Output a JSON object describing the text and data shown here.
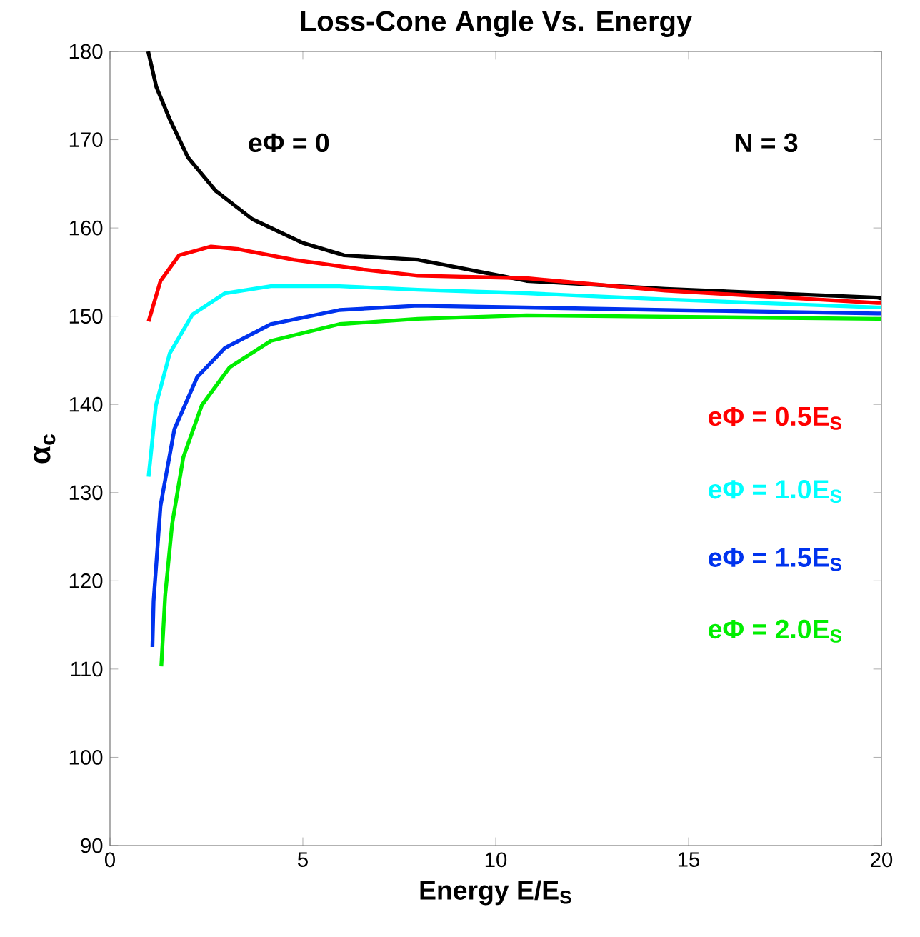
{
  "chart_data": {
    "type": "line",
    "title": "Loss-Cone Angle Vs. Energy",
    "xlabel": "Energy E/E$_{S}$",
    "ylabel": "α$_{c}$",
    "xlim": [
      0,
      20
    ],
    "ylim": [
      90,
      180
    ],
    "xticks": [
      0,
      5,
      10,
      15,
      20
    ],
    "yticks": [
      90,
      100,
      110,
      120,
      130,
      140,
      150,
      160,
      170,
      180
    ],
    "grid": false,
    "legend": false,
    "marker": "none",
    "line_style": "solid",
    "annotations": [
      "N = 3"
    ],
    "series": [
      {
        "name": "eΦ = 0",
        "color": "#000000",
        "x": [
          0.99,
          1.2,
          1.55,
          2.02,
          2.74,
          3.69,
          5.0,
          6.07,
          7.98,
          10.8,
          14.4,
          19.9,
          20
        ],
        "values": [
          180,
          176,
          172.3,
          168,
          164.2,
          161,
          158.3,
          156.9,
          156.4,
          154,
          153.1,
          152.1,
          152.0
        ]
      },
      {
        "name": "eΦ = 0.5E$_{S}$",
        "color": "#ff0000",
        "x": [
          1.0,
          1.31,
          1.79,
          2.62,
          3.33,
          4.76,
          6.55,
          7.98,
          10.8,
          14.4,
          19.9,
          20
        ],
        "values": [
          149.4,
          154,
          156.9,
          157.9,
          157.6,
          156.4,
          155.3,
          154.6,
          154.3,
          152.9,
          151.5,
          151.5
        ]
      },
      {
        "name": "eΦ = 1.0E$_{S}$",
        "color": "#00ffff",
        "x": [
          1.0,
          1.19,
          1.55,
          2.14,
          2.98,
          4.17,
          5.95,
          7.98,
          10.8,
          14.4,
          19.9,
          20
        ],
        "values": [
          131.8,
          139.9,
          145.8,
          150.2,
          152.6,
          153.4,
          153.4,
          153.0,
          152.6,
          151.9,
          151.0,
          151.0
        ]
      },
      {
        "name": "eΦ = 1.5E$_{S}$",
        "color": "#0033ee",
        "x": [
          1.1,
          1.13,
          1.31,
          1.67,
          2.26,
          2.98,
          4.17,
          5.95,
          7.98,
          14.4,
          19.9,
          20
        ],
        "values": [
          112.5,
          117.7,
          128.5,
          137.2,
          143.1,
          146.4,
          149.1,
          150.7,
          151.2,
          150.7,
          150.3,
          150.3
        ]
      },
      {
        "name": "eΦ = 2.0E$_{S}$",
        "color": "#00ee00",
        "x": [
          1.33,
          1.43,
          1.61,
          1.9,
          2.38,
          3.1,
          4.17,
          5.95,
          7.98,
          10.8,
          19.9,
          20
        ],
        "values": [
          110.3,
          118.3,
          126.4,
          134,
          139.9,
          144.2,
          147.2,
          149.1,
          149.7,
          150.1,
          149.7,
          149.7
        ]
      }
    ]
  }
}
